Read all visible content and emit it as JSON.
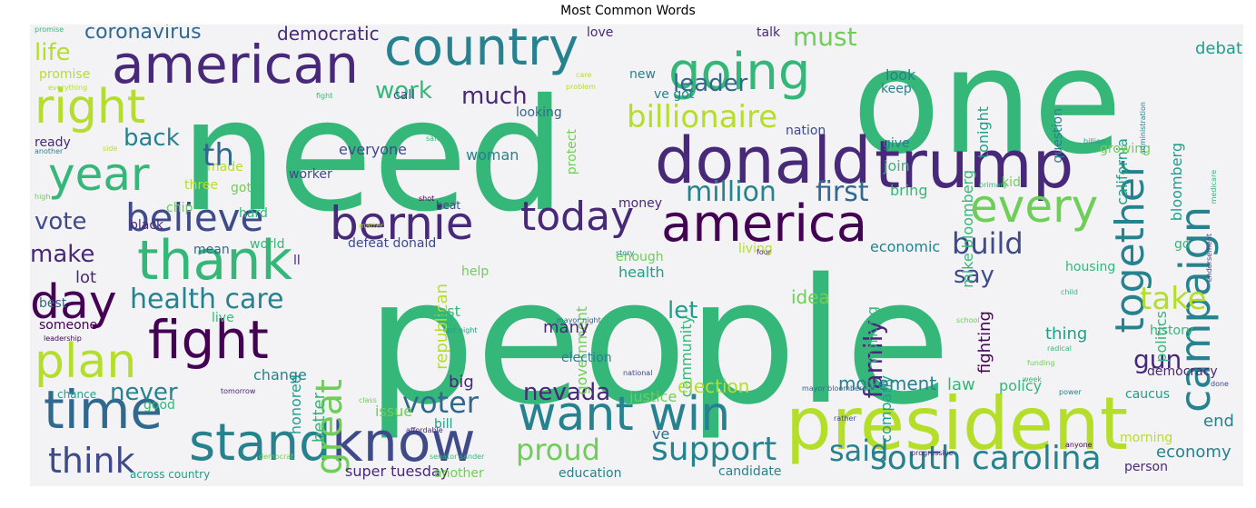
{
  "title": "Most Common Words",
  "palette": [
    "#440154",
    "#482878",
    "#3e4a89",
    "#31688e",
    "#26828e",
    "#1f9e89",
    "#35b779",
    "#6ece58",
    "#b5de2b",
    "#fde725"
  ],
  "words": [
    "need",
    "people",
    "one",
    "president",
    "donald",
    "trump",
    "american",
    "country",
    "going",
    "america",
    "bernie",
    "believe",
    "thank",
    "fight",
    "time",
    "stand",
    "know",
    "want win",
    "together",
    "campaign",
    "today",
    "right",
    "year",
    "day",
    "plan",
    "every",
    "billionaire",
    "support",
    "south carolina",
    "proud",
    "voter",
    "think",
    "health care",
    "great",
    "million",
    "first",
    "build",
    "family",
    "gun",
    "take",
    "work",
    "leader",
    "must",
    "coronavirus",
    "democratic",
    "life",
    "much",
    "back",
    "vote",
    "make",
    "nevada",
    "never",
    "let",
    "say",
    "economy",
    "end",
    "debate",
    "bloomberg",
    "mike bloomberg",
    "tonight",
    "question",
    "california",
    "politics",
    "fighting",
    "working",
    "community",
    "company",
    "better",
    "honored",
    "thing",
    "history",
    "democracy",
    "movement",
    "law",
    "election",
    "justice",
    "policy",
    "said",
    "person",
    "candidate",
    "education",
    "super tuesday",
    "across country",
    "another",
    "bill",
    "issue",
    "republican",
    "government",
    "idea",
    "many",
    "big",
    "chip",
    "black",
    "ready",
    "nation",
    "everyone",
    "woman",
    "join",
    "bring",
    "kid",
    "money",
    "beat",
    "defeat donald",
    "world",
    "help",
    "health",
    "enough",
    "living",
    "economic",
    "go",
    "look",
    "keep",
    "give",
    "growing",
    "housing",
    "love",
    "new",
    "talk",
    "ve got",
    "call",
    "looking",
    "protect",
    "three",
    "got",
    "made",
    "hard",
    "mean",
    "lot",
    "best",
    "live",
    "chance",
    "good",
    "change",
    "caucus",
    "ve",
    "th",
    "ll",
    "morning",
    "tomorrow",
    "someone",
    "leadership",
    "last",
    "last night",
    "mayor night",
    "election",
    "promise",
    "promise",
    "everything",
    "another",
    "side",
    "high",
    "worker",
    "fight",
    "matter",
    "safe",
    "billion",
    "administration",
    "medicare",
    "endorsement",
    "child",
    "radical",
    "funding",
    "school",
    "week",
    "done",
    "power",
    "anyone",
    "primary",
    "four",
    "mayor bloomberg",
    "affordable",
    "national",
    "class",
    "shot",
    "progressive",
    "democrat",
    "senator sander",
    "rather",
    "problem",
    "care",
    "story",
    "failure",
    "powerful",
    "age"
  ]
}
